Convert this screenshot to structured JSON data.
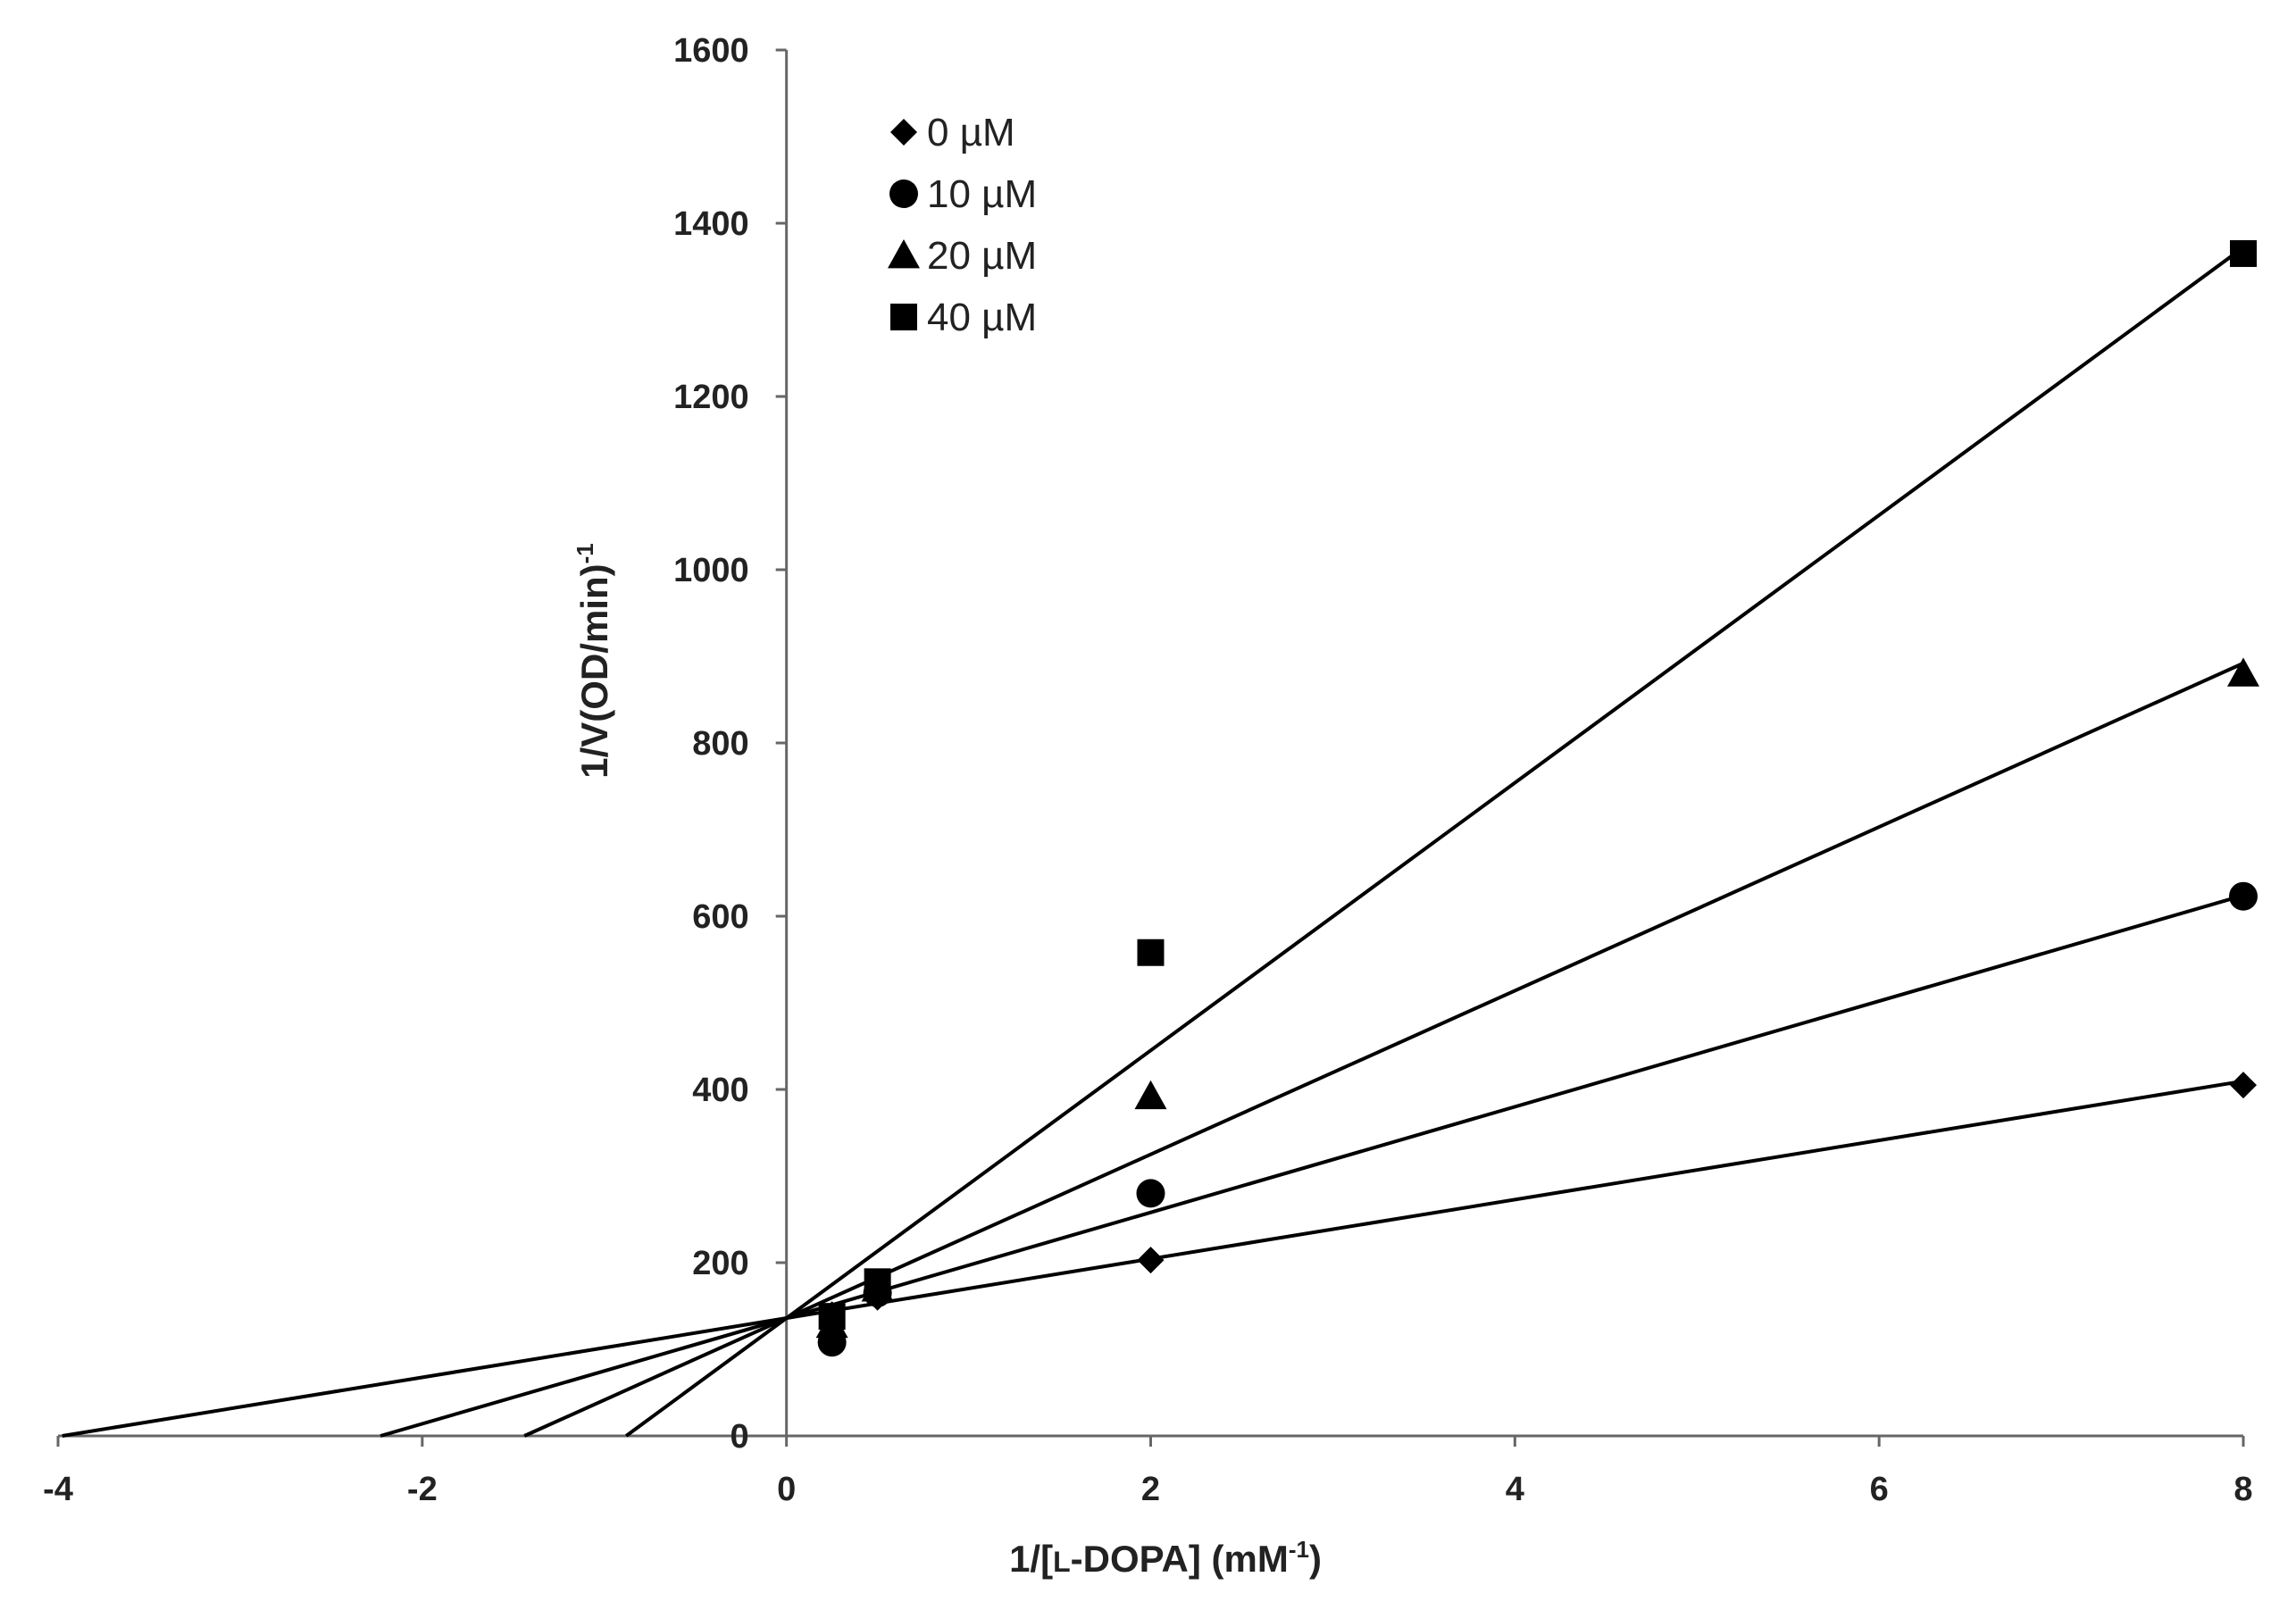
{
  "chart_data": {
    "type": "scatter",
    "title": "",
    "xlabel": {
      "prefix": "1/[",
      "smallcaps": "L",
      "middle": "-DOPA]  (mM",
      "superscript": "-1",
      "suffix": ")"
    },
    "ylabel": {
      "main": "1/V(OD/min)",
      "superscript": "-1"
    },
    "xlim": [
      -4,
      8
    ],
    "ylim": [
      0,
      1600
    ],
    "x_ticks": [
      -4,
      -2,
      0,
      2,
      4,
      6,
      8
    ],
    "y_ticks": [
      0,
      200,
      400,
      600,
      800,
      1000,
      1200,
      1400,
      1600
    ],
    "grid": false,
    "legend_position": "top-left",
    "series": [
      {
        "name": "0 µM",
        "marker": "diamond",
        "x": [
          0.25,
          0.5,
          2,
          8
        ],
        "y": [
          140,
          160,
          203,
          405
        ],
        "fit": {
          "slope": 34.2,
          "intercept": 136
        }
      },
      {
        "name": "10 µM",
        "marker": "circle",
        "x": [
          0.25,
          0.5,
          2,
          8
        ],
        "y": [
          108,
          165,
          280,
          623
        ],
        "fit": {
          "slope": 61.0,
          "intercept": 136
        }
      },
      {
        "name": "20 µM",
        "marker": "triangle",
        "x": [
          0.25,
          0.5,
          2,
          8
        ],
        "y": [
          128,
          170,
          392,
          880
        ],
        "fit": {
          "slope": 94.5,
          "intercept": 136
        }
      },
      {
        "name": "40 µM",
        "marker": "square",
        "x": [
          0.25,
          0.5,
          2,
          8
        ],
        "y": [
          138,
          178,
          558,
          1365
        ],
        "fit": {
          "slope": 154.5,
          "intercept": 136
        }
      }
    ]
  }
}
